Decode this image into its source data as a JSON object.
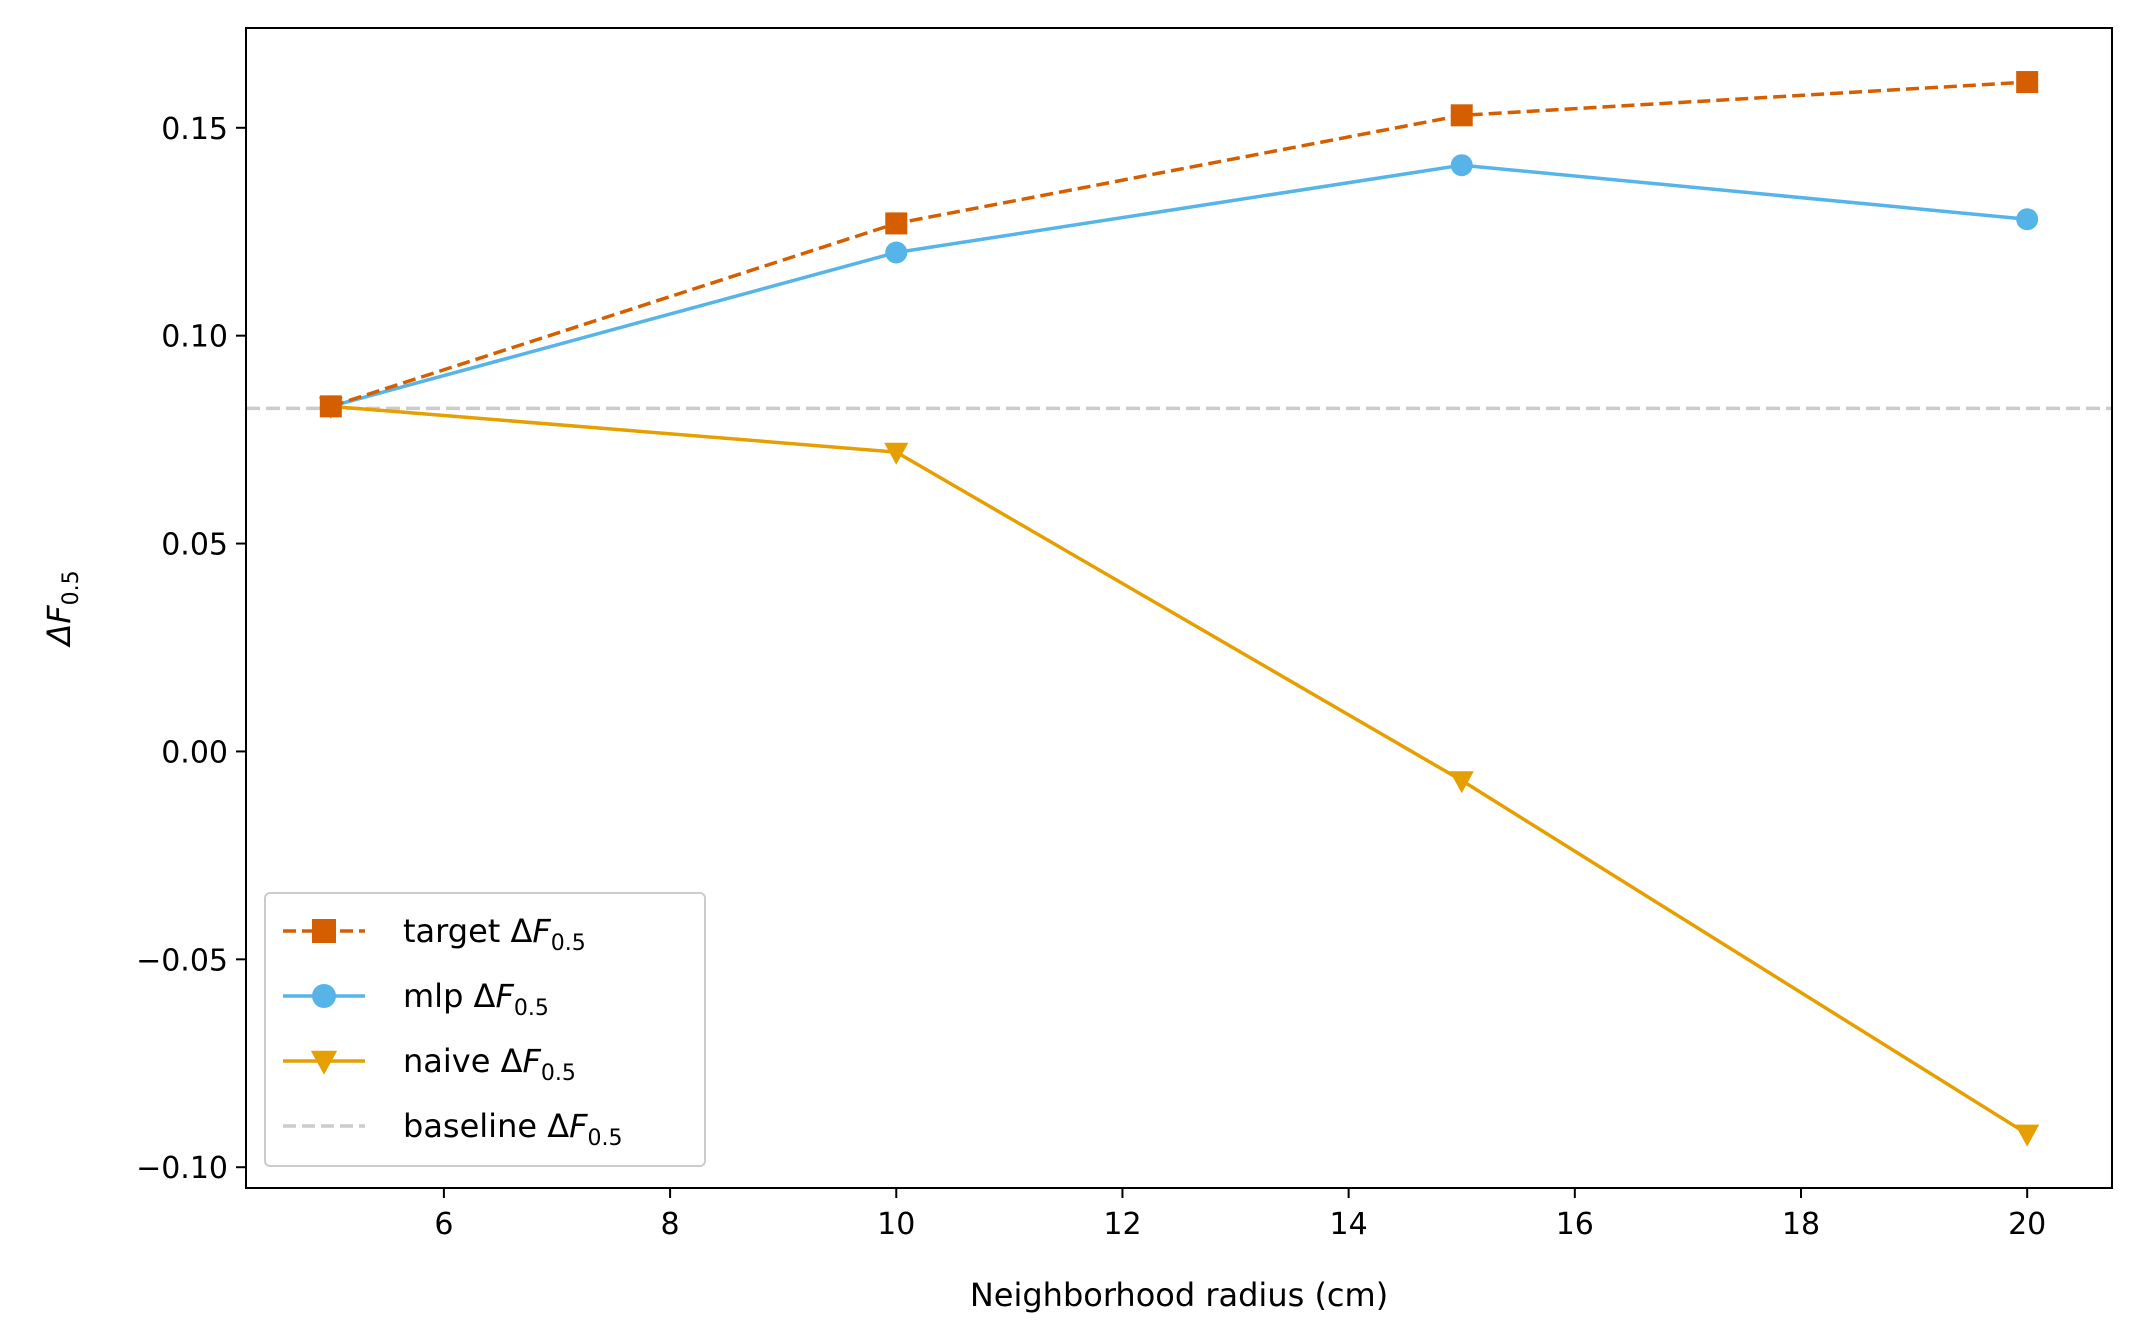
{
  "chart_data": {
    "type": "line",
    "title": "",
    "xlabel": "Neighborhood radius (cm)",
    "ylabel": "ΔF",
    "ylabel_sub": "0.5",
    "xlim": [
      4.25,
      20.75
    ],
    "ylim": [
      -0.105,
      0.174
    ],
    "xticks": [
      6,
      8,
      10,
      12,
      14,
      16,
      18,
      20
    ],
    "xtick_labels": [
      "6",
      "8",
      "10",
      "12",
      "14",
      "16",
      "18",
      "20"
    ],
    "yticks": [
      -0.1,
      -0.05,
      0.0,
      0.05,
      0.1,
      0.15
    ],
    "ytick_labels": [
      "−0.10",
      "−0.05",
      "0.00",
      "0.05",
      "0.10",
      "0.15"
    ],
    "grid": false,
    "legend_position": "lower-left",
    "x": [
      5,
      10,
      15,
      20
    ],
    "series": [
      {
        "name": "target ΔF",
        "name_sub": "0.5",
        "values": [
          0.083,
          0.127,
          0.153,
          0.161
        ],
        "color": "#d55e00",
        "marker": "square",
        "linestyle": "dashed"
      },
      {
        "name": "mlp ΔF",
        "name_sub": "0.5",
        "values": [
          0.083,
          0.12,
          0.141,
          0.128
        ],
        "color": "#56b4e9",
        "marker": "circle",
        "linestyle": "solid"
      },
      {
        "name": "naive ΔF",
        "name_sub": "0.5",
        "values": [
          0.083,
          0.072,
          -0.007,
          -0.092
        ],
        "color": "#e69f00",
        "marker": "triangle-down",
        "linestyle": "solid"
      }
    ],
    "baseline": {
      "name": "baseline ΔF",
      "name_sub": "0.5",
      "value": 0.0825,
      "color": "#cccccc",
      "linestyle": "dashed"
    }
  }
}
